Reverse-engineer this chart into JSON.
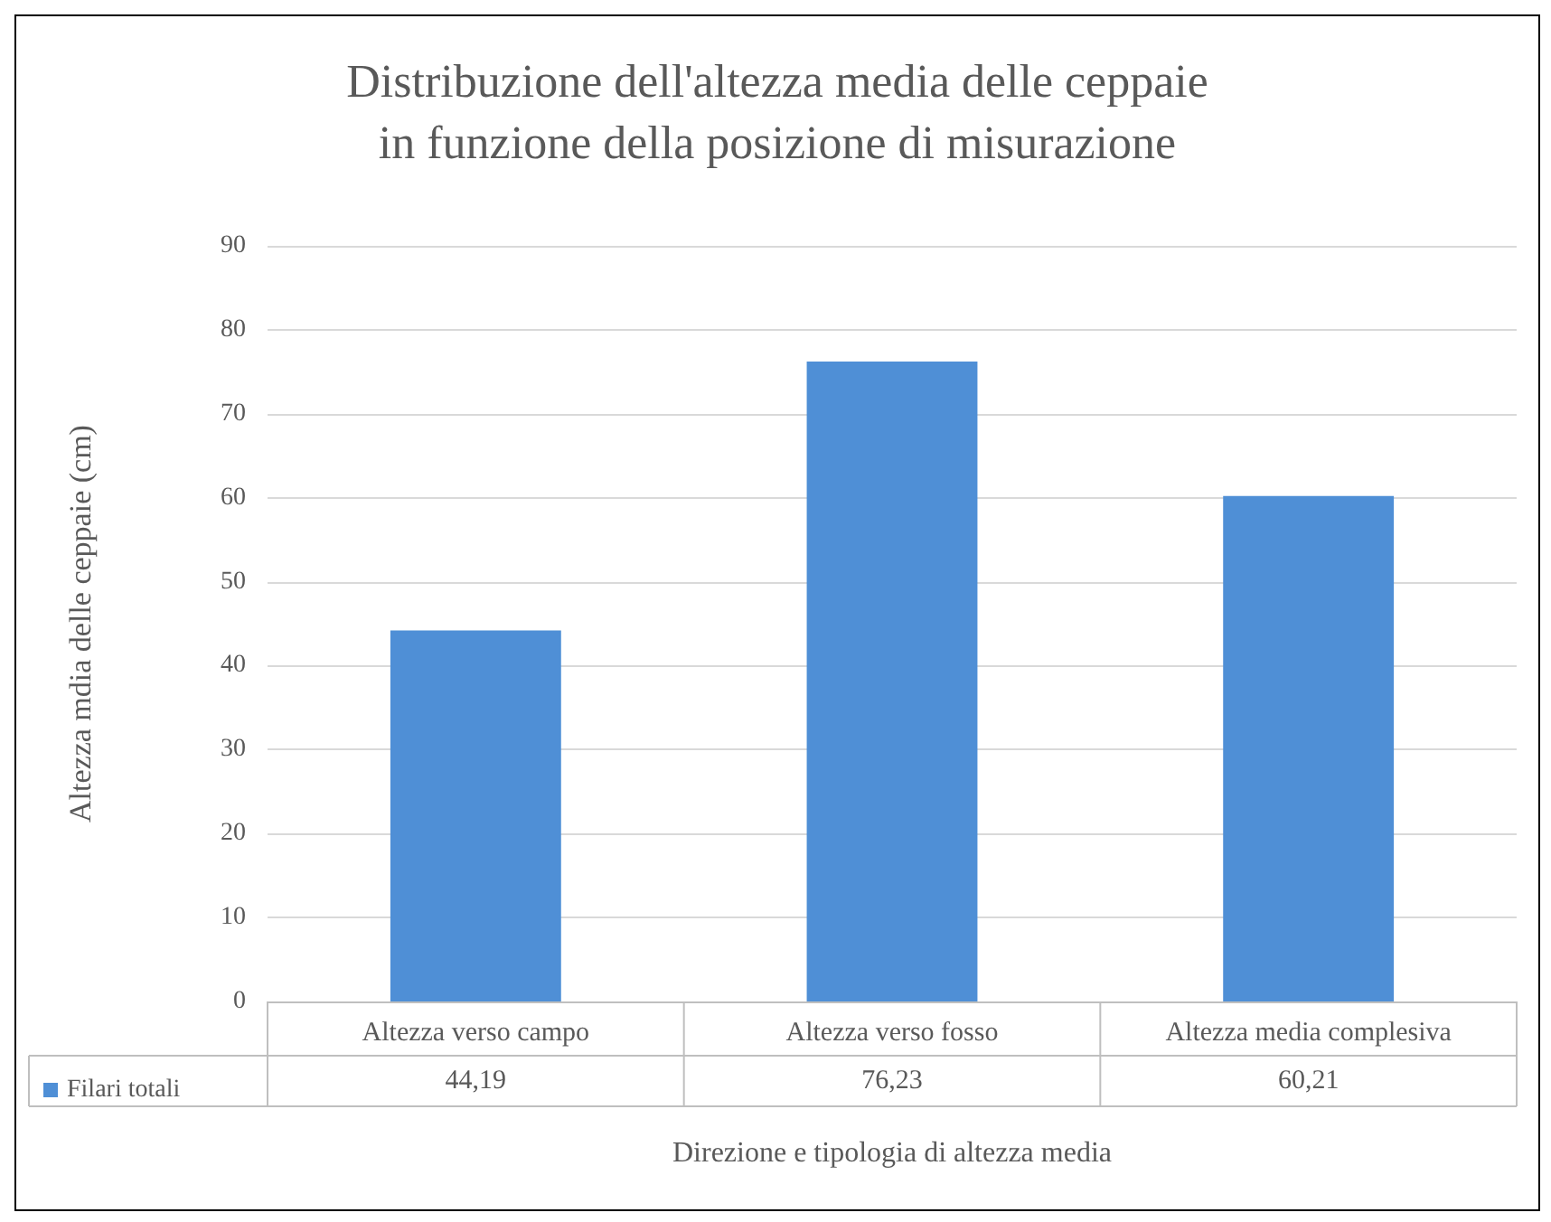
{
  "chart_data": {
    "type": "bar",
    "title": "Distribuzione dell'altezza media delle ceppaie\nin funzione della posizione di misurazione",
    "xlabel": "Direzione e tipologia di altezza media",
    "ylabel": "Altezza mdia delle ceppaie (cm)",
    "categories": [
      "Altezza verso campo",
      "Altezza verso fosso",
      "Altezza media complesiva"
    ],
    "series": [
      {
        "name": "Filari totali",
        "color": "#4f8fd6",
        "values": [
          44.19,
          76.23,
          60.21
        ],
        "value_labels": [
          "44,19",
          "76,23",
          "60,21"
        ]
      }
    ],
    "ylim": [
      0,
      90
    ],
    "yticks": [
      0,
      10,
      20,
      30,
      40,
      50,
      60,
      70,
      80,
      90
    ],
    "grid": "y",
    "legend": "bottom left"
  }
}
